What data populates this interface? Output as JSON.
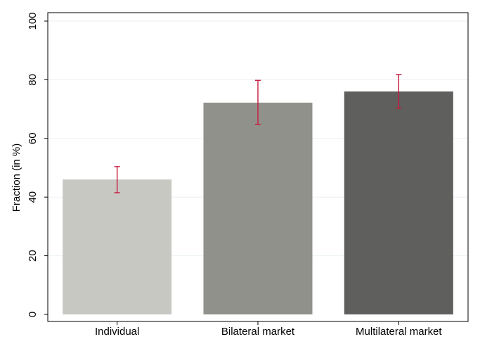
{
  "chart_data": {
    "type": "bar",
    "title": "",
    "xlabel": "",
    "ylabel": "Fraction (in %)",
    "ylim": [
      0,
      100
    ],
    "yticks": [
      0,
      20,
      40,
      60,
      80,
      100
    ],
    "grid": true,
    "categories": [
      "Individual",
      "Bilateral market",
      "Multilateral market"
    ],
    "values": [
      46,
      72.2,
      76
    ],
    "error_low": [
      41.5,
      64.8,
      70.3
    ],
    "error_high": [
      50.4,
      79.8,
      81.8
    ],
    "bar_colors": [
      "#c8c8c3",
      "#91918c",
      "#5f5f5d"
    ],
    "error_color": "#c8193c"
  }
}
